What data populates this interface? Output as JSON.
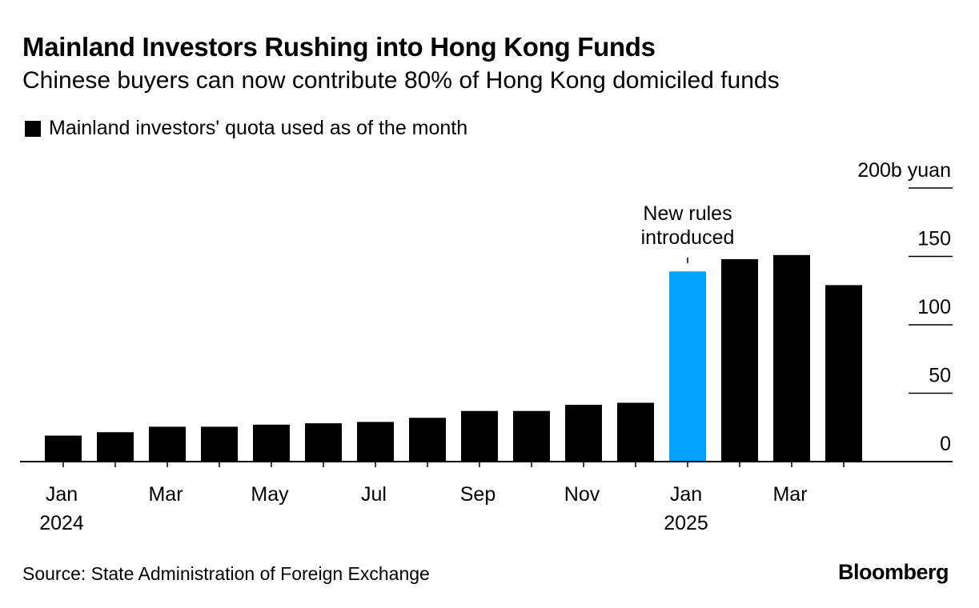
{
  "header": {
    "title": "Mainland Investors Rushing into Hong Kong Funds",
    "subtitle": "Chinese buyers can now contribute 80% of Hong Kong domiciled funds"
  },
  "legend": {
    "label": "Mainland investors' quota used as of the month"
  },
  "footer": {
    "source": "Source: State Administration of Foreign Exchange",
    "logo": "Bloomberg"
  },
  "colors": {
    "bar": "#000000",
    "highlight": "#00a3ff",
    "axis": "#000000"
  },
  "chart_data": {
    "type": "bar",
    "title": "Mainland Investors Rushing into Hong Kong Funds",
    "subtitle": "Chinese buyers can now contribute 80% of Hong Kong domiciled funds",
    "unit": "b yuan",
    "categories": [
      "Jan 2024",
      "Feb 2024",
      "Mar 2024",
      "Apr 2024",
      "May 2024",
      "Jun 2024",
      "Jul 2024",
      "Aug 2024",
      "Sep 2024",
      "Oct 2024",
      "Nov 2024",
      "Dec 2024",
      "Jan 2025",
      "Feb 2025",
      "Mar 2025",
      "Apr 2025"
    ],
    "values": [
      19,
      21.5,
      25.5,
      25.5,
      27,
      28,
      29,
      32,
      37,
      37,
      41.5,
      43,
      139,
      148,
      151,
      129
    ],
    "highlight_index": 12,
    "ylim": [
      0,
      200
    ],
    "yticks": [
      0,
      50,
      100,
      150,
      200
    ],
    "ytick_labels": [
      "0",
      "50",
      "100",
      "150",
      "200b yuan"
    ],
    "xtick_labels": [
      {
        "index": 0,
        "line1": "Jan",
        "line2": "2024"
      },
      {
        "index": 2,
        "line1": "Mar",
        "line2": ""
      },
      {
        "index": 4,
        "line1": "May",
        "line2": ""
      },
      {
        "index": 6,
        "line1": "Jul",
        "line2": ""
      },
      {
        "index": 8,
        "line1": "Sep",
        "line2": ""
      },
      {
        "index": 10,
        "line1": "Nov",
        "line2": ""
      },
      {
        "index": 12,
        "line1": "Jan",
        "line2": "2025"
      },
      {
        "index": 14,
        "line1": "Mar",
        "line2": ""
      }
    ],
    "annotation": {
      "index": 12,
      "line1": "New rules",
      "line2": "introduced"
    },
    "legend": "Mainland investors' quota used as of the month",
    "yaxis_position": "right",
    "grid": true
  }
}
